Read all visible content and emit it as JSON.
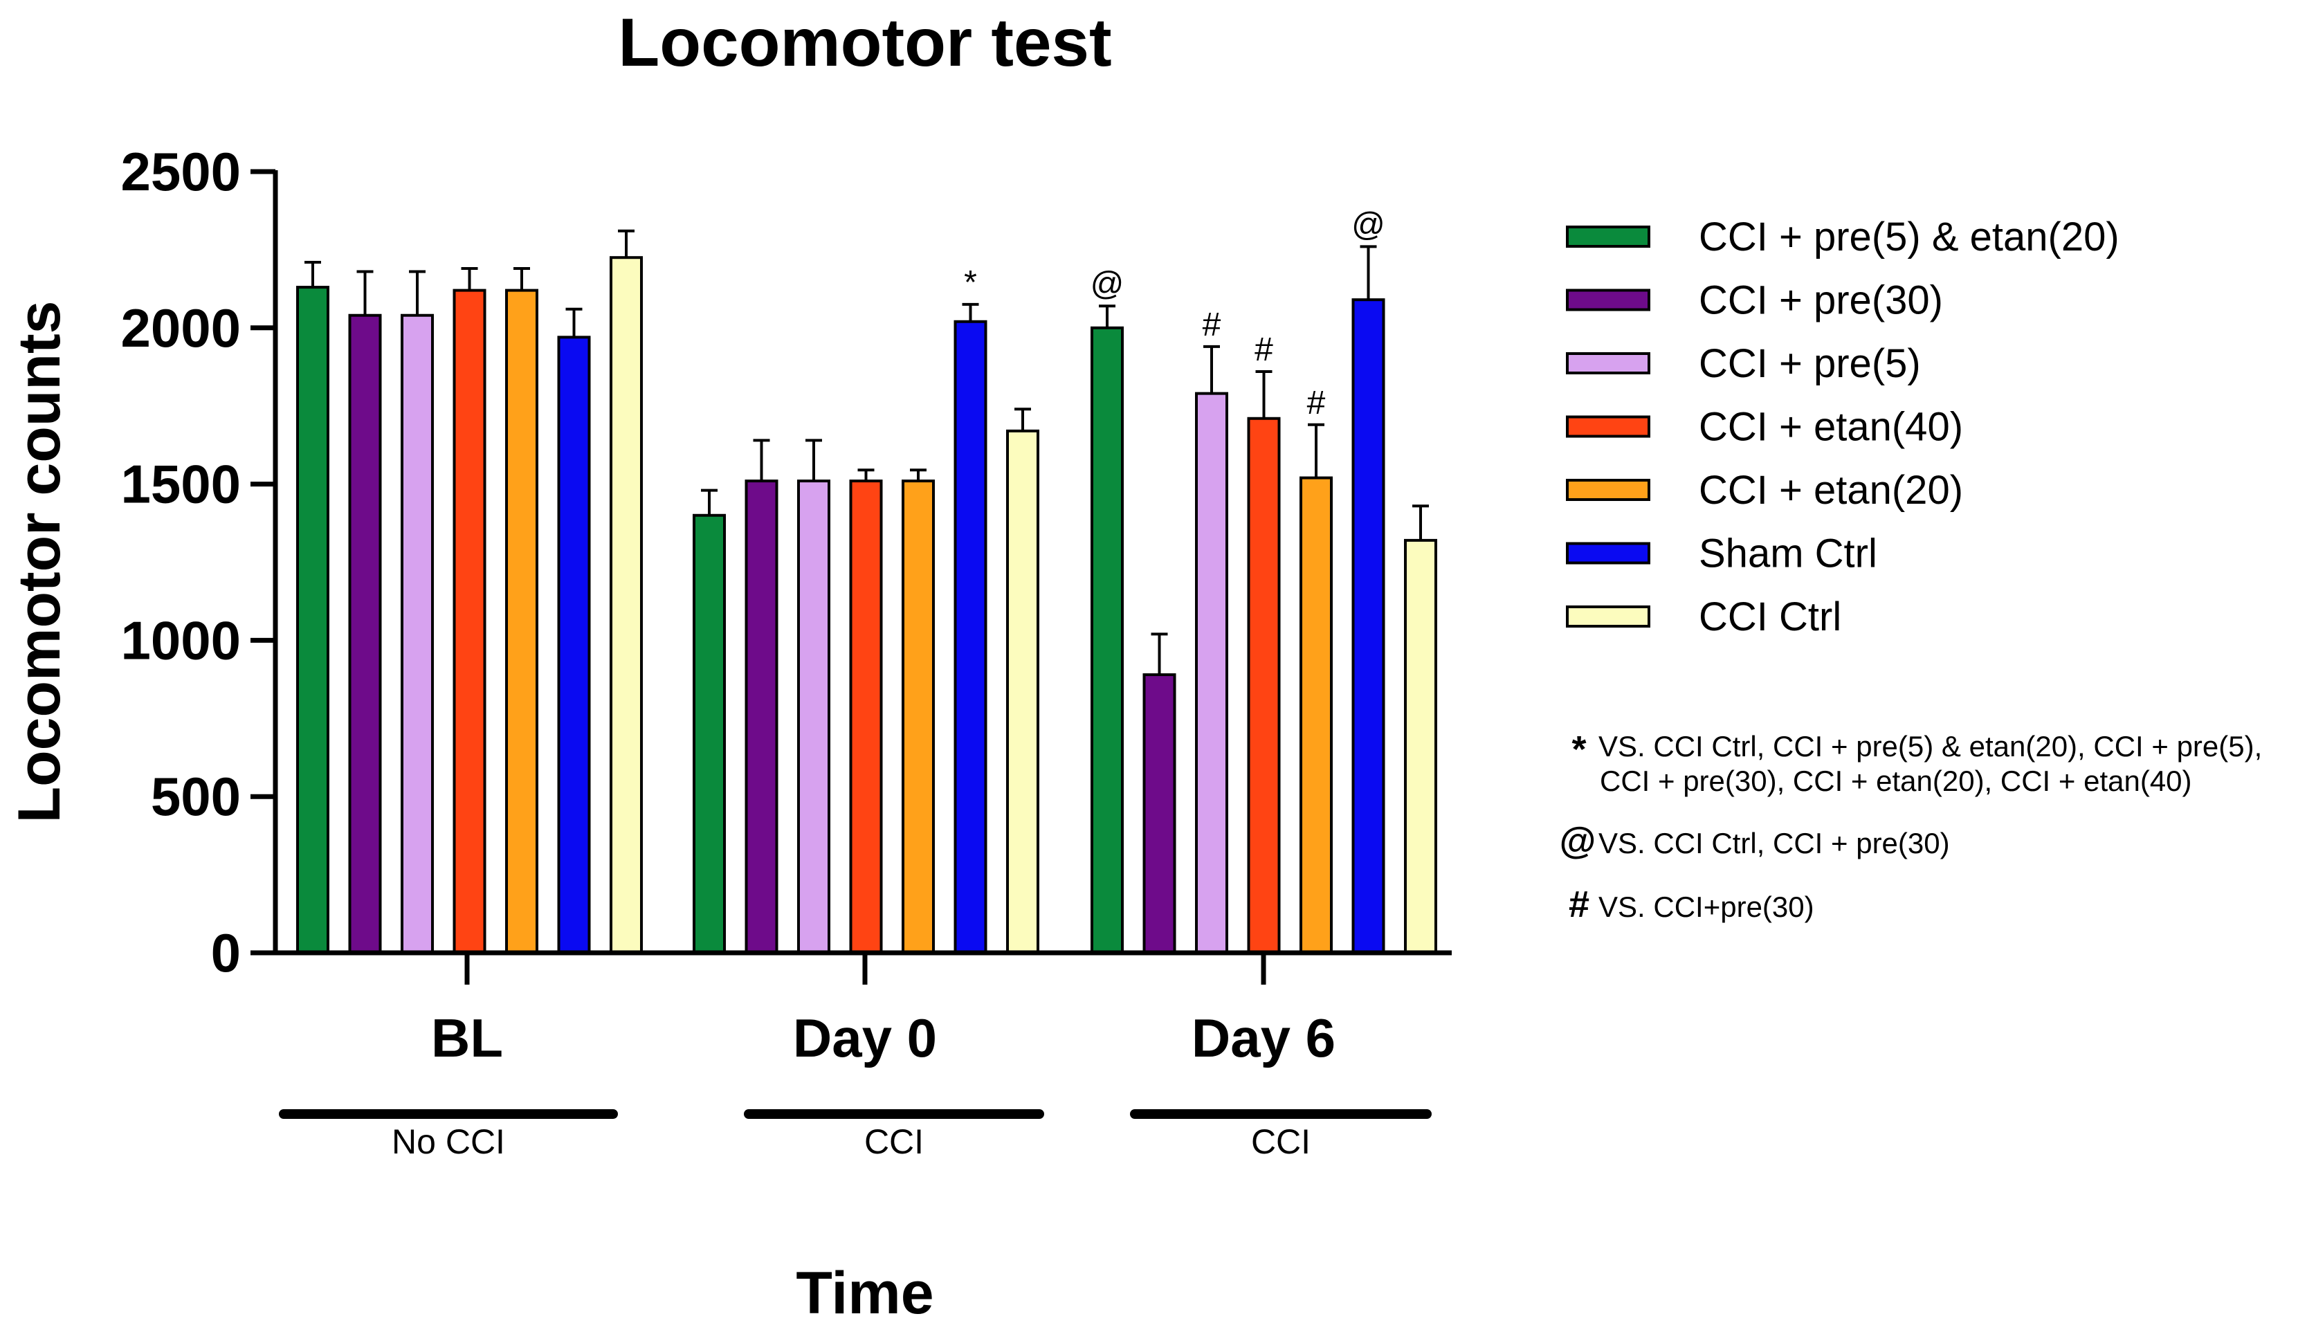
{
  "chart_data": {
    "type": "bar",
    "title": "Locomotor test",
    "xlabel": "Time",
    "ylabel": "Locomotor counts",
    "ylim": [
      0,
      2500
    ],
    "yticks": [
      0,
      500,
      1000,
      1500,
      2000,
      2500
    ],
    "categories": [
      "BL",
      "Day 0",
      "Day 6"
    ],
    "groups": [
      {
        "label": "No CCI",
        "categories": [
          "BL"
        ]
      },
      {
        "label": "CCI",
        "categories": [
          "Day 0"
        ]
      },
      {
        "label": "CCI",
        "categories": [
          "Day 6"
        ]
      }
    ],
    "series": [
      {
        "name": "CCI + pre(5) & etan(20)",
        "color": "#0a8a3c",
        "values": [
          2130,
          1400,
          2000
        ],
        "errors": [
          80,
          80,
          70
        ],
        "annotations": [
          "",
          "",
          "@"
        ]
      },
      {
        "name": "CCI + pre(30)",
        "color": "#6e0b8a",
        "values": [
          2040,
          1510,
          890
        ],
        "errors": [
          140,
          130,
          130
        ],
        "annotations": [
          "",
          "",
          ""
        ]
      },
      {
        "name": "CCI + pre(5)",
        "color": "#d7a2ef",
        "values": [
          2040,
          1510,
          1790
        ],
        "errors": [
          140,
          130,
          150
        ],
        "annotations": [
          "",
          "",
          "#"
        ]
      },
      {
        "name": "CCI + etan(40)",
        "color": "#ff4413",
        "values": [
          2120,
          1510,
          1710
        ],
        "errors": [
          70,
          35,
          150
        ],
        "annotations": [
          "",
          "",
          "#"
        ]
      },
      {
        "name": "CCI + etan(20)",
        "color": "#ffa11a",
        "values": [
          2120,
          1510,
          1520
        ],
        "errors": [
          70,
          35,
          170
        ],
        "annotations": [
          "",
          "",
          "#"
        ]
      },
      {
        "name": "Sham Ctrl",
        "color": "#0a0af2",
        "values": [
          1970,
          2020,
          2090
        ],
        "errors": [
          90,
          55,
          170
        ],
        "annotations": [
          "",
          "*",
          "@"
        ]
      },
      {
        "name": "CCI Ctrl",
        "color": "#fcfcbe",
        "values": [
          2225,
          1670,
          1320
        ],
        "errors": [
          85,
          70,
          110
        ],
        "annotations": [
          "",
          "",
          ""
        ]
      }
    ],
    "notes": [
      {
        "symbol": "*",
        "line1": "VS. CCI Ctrl, CCI + pre(5) & etan(20), CCI + pre(5),",
        "line2": "CCI + pre(30), CCI + etan(20), CCI + etan(40)"
      },
      {
        "symbol": "@",
        "line1": "VS. CCI Ctrl, CCI + pre(30)",
        "line2": ""
      },
      {
        "symbol": "#",
        "line1": "VS. CCI+pre(30)",
        "line2": ""
      }
    ]
  }
}
